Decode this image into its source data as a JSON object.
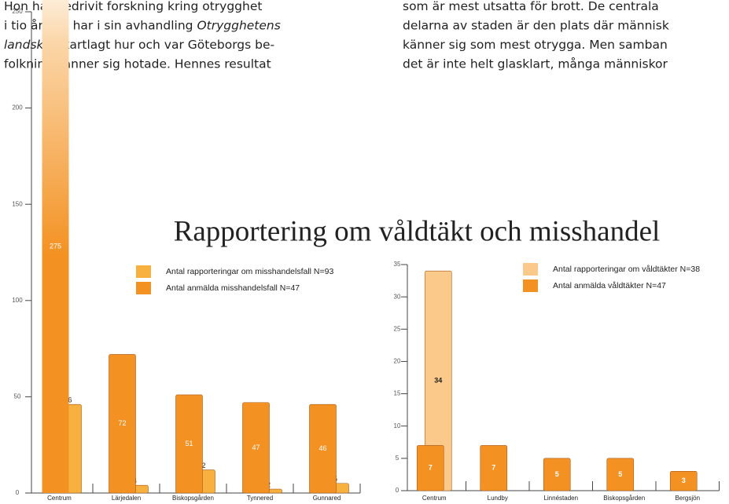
{
  "document": {
    "left_lines": [
      [
        {
          "text": "Hon har bedrivit forskning kring otrygghet"
        }
      ],
      [
        {
          "text": "i tio år och har i sin avhandling "
        },
        {
          "text": "Otrygghetens",
          "italic": true
        }
      ],
      [
        {
          "text": "landskap",
          "italic": true
        },
        {
          "text": " kartlagt hur och var Göteborgs be-"
        }
      ],
      [
        {
          "text": "folkning känner sig hotade. Hennes resultat"
        }
      ]
    ],
    "right_lines": [
      [
        {
          "text": "som är mest utsatta för brott. De centrala"
        }
      ],
      [
        {
          "text": "delarna av staden är den plats där människ"
        }
      ],
      [
        {
          "text": "känner sig som mest otrygga. Men samban"
        }
      ],
      [
        {
          "text": "det är inte helt glasklart, många människor"
        }
      ]
    ]
  },
  "title": "Rapportering om våldtäkt och misshandel",
  "chart_data": [
    {
      "type": "bar",
      "categories": [
        "Centrum",
        "Lärjedalen",
        "Biskopsgården",
        "Tynnered",
        "Gunnared"
      ],
      "series": [
        {
          "name": "Antal rapporteringar om misshandelsfall N=93",
          "color": "#f8b03e",
          "values": [
            46,
            4,
            12,
            2,
            5
          ]
        },
        {
          "name": "Antal anmälda misshandelsfall N=47",
          "color": "#f39223",
          "values": [
            275,
            72,
            51,
            47,
            46
          ]
        }
      ],
      "ylim": [
        0,
        250
      ],
      "yticks": [
        0,
        50,
        100,
        150,
        200,
        250
      ]
    },
    {
      "type": "bar",
      "categories": [
        "Centrum",
        "Lundby",
        "Linnéstaden",
        "Biskopsgården",
        "Bergsjön"
      ],
      "series": [
        {
          "name": "Antal rapporteringar om våldtäkter N=38",
          "color": "#fbc98a",
          "values": [
            34,
            null,
            null,
            null,
            null
          ]
        },
        {
          "name": "Antal anmälda våldtäkter N=47",
          "color": "#f39223",
          "values": [
            7,
            7,
            5,
            5,
            3
          ]
        }
      ],
      "ylim": [
        0,
        35
      ],
      "yticks": [
        0,
        5,
        10,
        15,
        20,
        25,
        30,
        35
      ]
    }
  ]
}
